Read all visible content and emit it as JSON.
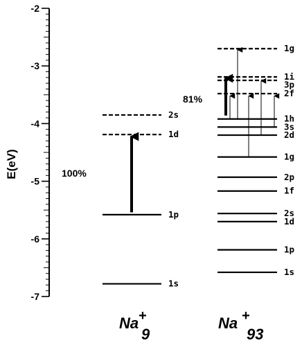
{
  "axis": {
    "title": "E(eV)",
    "min": -7,
    "max": -2,
    "major_ticks": [
      -2,
      -3,
      -4,
      -5,
      -6,
      -7
    ],
    "minor_per_major": 10
  },
  "clusters": [
    {
      "id": "na9",
      "name": "Na",
      "subscript": "9",
      "superscript": "+",
      "transition_percent": "100%",
      "levels": [
        {
          "label": "2s",
          "energy": -3.85,
          "state": "unoccupied"
        },
        {
          "label": "1d",
          "energy": -4.19,
          "state": "unoccupied"
        },
        {
          "label": "1p",
          "energy": -5.58,
          "state": "occupied"
        },
        {
          "label": "1s",
          "energy": -6.78,
          "state": "occupied"
        }
      ],
      "transitions": [
        {
          "from": -5.54,
          "to": -4.2,
          "weight": "strong"
        }
      ]
    },
    {
      "id": "na93",
      "name": "Na",
      "subscript": "93",
      "superscript": "+",
      "transition_percent": "81%",
      "levels": [
        {
          "label": "1g",
          "energy": -2.7,
          "state": "unoccupied"
        },
        {
          "label": "1i",
          "energy": -3.19,
          "state": "unoccupied"
        },
        {
          "label": "3p",
          "energy": -3.25,
          "state": "unoccupied"
        },
        {
          "label": "2f",
          "energy": -3.48,
          "state": "unoccupied"
        },
        {
          "label": "1h",
          "energy": -3.92,
          "state": "occupied"
        },
        {
          "label": "3s",
          "energy": -4.06,
          "state": "occupied"
        },
        {
          "label": "2d",
          "energy": -4.2,
          "state": "occupied"
        },
        {
          "label": "1g",
          "energy": -4.58,
          "state": "occupied"
        },
        {
          "label": "2p",
          "energy": -4.93,
          "state": "occupied"
        },
        {
          "label": "1f",
          "energy": -5.17,
          "state": "occupied"
        },
        {
          "label": "2s",
          "energy": -5.56,
          "state": "occupied"
        },
        {
          "label": "1d",
          "energy": -5.7,
          "state": "occupied"
        },
        {
          "label": "1p",
          "energy": -6.19,
          "state": "occupied"
        },
        {
          "label": "1s",
          "energy": -6.58,
          "state": "occupied"
        }
      ],
      "transitions": [
        {
          "from": -3.86,
          "to": -3.19,
          "weight": "strong"
        },
        {
          "from": -3.92,
          "to": -2.72,
          "weight": "thin"
        },
        {
          "from": -3.92,
          "to": -3.52,
          "weight": "thin"
        },
        {
          "from": -4.58,
          "to": -3.52,
          "weight": "thin"
        },
        {
          "from": -4.2,
          "to": -3.26,
          "weight": "thin"
        },
        {
          "from": -4.06,
          "to": -3.52,
          "weight": "thin"
        }
      ]
    }
  ],
  "colors": {
    "line": "#000000",
    "background": "#ffffff"
  }
}
